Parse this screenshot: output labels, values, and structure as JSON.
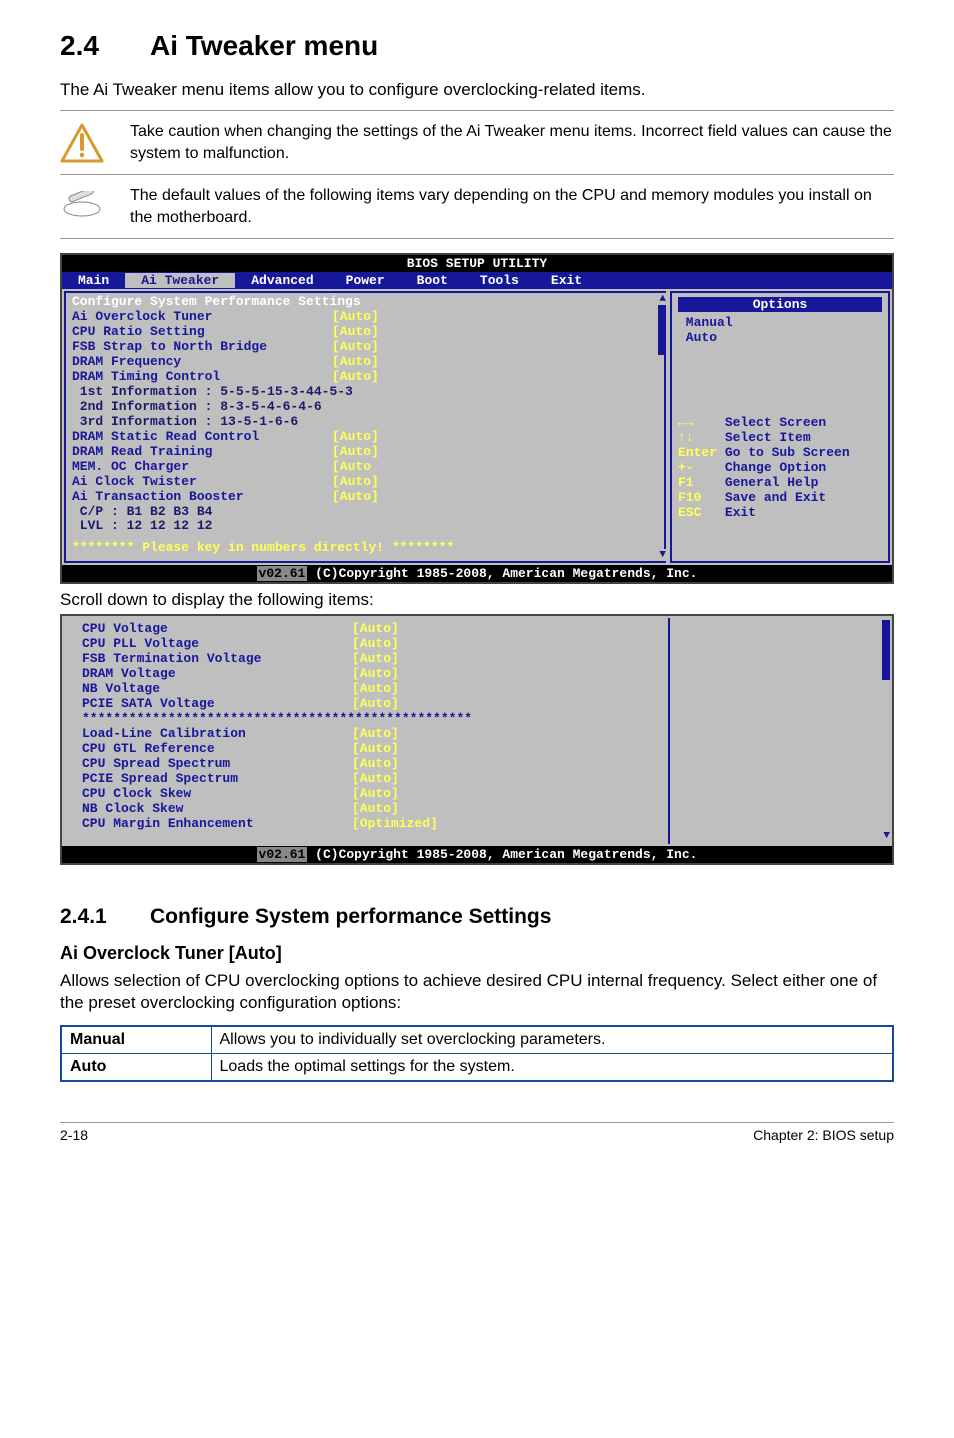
{
  "page": {
    "section_number": "2.4",
    "section_title": "Ai Tweaker menu",
    "intro": "The Ai Tweaker menu items allow you to configure overclocking-related items.",
    "caution_text": "Take caution when changing the settings of the Ai Tweaker menu items. Incorrect field values can cause the system to malfunction.",
    "note_text": "The default values of the following items vary depending on the CPU and memory modules you install on the motherboard.",
    "scroll_note": "Scroll down to display the following items:",
    "sub_number": "2.4.1",
    "sub_title": "Configure System performance Settings",
    "h3": "Ai Overclock Tuner [Auto]",
    "h3_text": "Allows selection of CPU overclocking options to achieve desired CPU internal frequency. Select either one of the preset overclocking configuration options:",
    "footer_left": "2-18",
    "footer_right": "Chapter 2: BIOS setup"
  },
  "bios": {
    "title": "BIOS SETUP UTILITY",
    "tabs": [
      "Main",
      "Ai Tweaker",
      "Advanced",
      "Power",
      "Boot",
      "Tools",
      "Exit"
    ],
    "selected_tab": 1,
    "section_header": "Configure System Performance Settings",
    "left_rows": [
      {
        "label": "Ai Overclock Tuner",
        "value": "[Auto]"
      },
      {
        "label": "CPU Ratio Setting",
        "value": "[Auto]"
      },
      {
        "label": "FSB Strap to North Bridge",
        "value": "[Auto]"
      },
      {
        "label": "DRAM Frequency",
        "value": "[Auto]"
      },
      {
        "label": "DRAM Timing Control",
        "value": "[Auto]"
      },
      {
        "label": " 1st Information : 5-5-5-15-3-44-5-3",
        "sub": true
      },
      {
        "label": " 2nd Information : 8-3-5-4-6-4-6",
        "sub": true
      },
      {
        "label": " 3rd Information : 13-5-1-6-6",
        "sub": true
      },
      {
        "label": "DRAM Static Read Control",
        "value": "[Auto]"
      },
      {
        "label": "DRAM Read Training",
        "value": "[Auto]"
      },
      {
        "label": "MEM. OC Charger",
        "value": "[Auto"
      },
      {
        "label": "Ai Clock Twister",
        "value": "[Auto]"
      },
      {
        "label": "Ai Transaction Booster",
        "value": "[Auto]"
      },
      {
        "label": " C/P : B1 B2 B3 B4",
        "sub": true
      },
      {
        "label": " LVL : 12 12 12 12",
        "sub": true
      }
    ],
    "please_key": "******** Please key in numbers directly! ********",
    "options_title": "Options",
    "right_opts": [
      "Manual",
      "Auto"
    ],
    "nav": [
      {
        "k": "←→",
        "v": "Select Screen",
        "ky": true
      },
      {
        "k": "↑↓",
        "v": "Select Item",
        "ky": true
      },
      {
        "k": "Enter",
        "v": "Go to Sub Screen"
      },
      {
        "k": "+-",
        "v": "Change Option"
      },
      {
        "k": "F1",
        "v": "General Help"
      },
      {
        "k": "F10",
        "v": "Save and Exit"
      },
      {
        "k": "ESC",
        "v": "Exit"
      }
    ],
    "copyright_ver": "v02.61",
    "copyright": "(C)Copyright 1985-2008, American Megatrends, Inc."
  },
  "bios2": {
    "rows": [
      {
        "label": "CPU Voltage",
        "value": "[Auto]"
      },
      {
        "label": "CPU PLL Voltage",
        "value": "[Auto]"
      },
      {
        "label": "FSB Termination Voltage",
        "value": "[Auto]"
      },
      {
        "label": "DRAM Voltage",
        "value": "[Auto]"
      },
      {
        "label": "NB Voltage",
        "value": "[Auto]"
      },
      {
        "label": "PCIE SATA Voltage",
        "value": "[Auto]"
      }
    ],
    "stars": "**************************************************",
    "rows2": [
      {
        "label": "Load-Line Calibration",
        "value": "[Auto]"
      },
      {
        "label": "CPU GTL Reference",
        "value": "[Auto]"
      },
      {
        "label": "CPU Spread Spectrum",
        "value": "[Auto]"
      },
      {
        "label": "PCIE Spread Spectrum",
        "value": "[Auto]"
      },
      {
        "label": "CPU Clock Skew",
        "value": "[Auto]"
      },
      {
        "label": "NB Clock Skew",
        "value": "[Auto]"
      },
      {
        "label": "CPU Margin Enhancement",
        "value": "[Optimized]"
      }
    ],
    "copyright_ver": "v02.61",
    "copyright": "(C)Copyright 1985-2008, American Megatrends, Inc."
  },
  "options_table": [
    {
      "k": "Manual",
      "v": "Allows you to individually set overclocking parameters."
    },
    {
      "k": "Auto",
      "v": "Loads the optimal settings for the system."
    }
  ],
  "colors": {
    "bios_bg": "#17179a",
    "bios_panel": "#bfbfbf",
    "bios_yellow": "#ffff55",
    "table_border": "#124b9a"
  }
}
